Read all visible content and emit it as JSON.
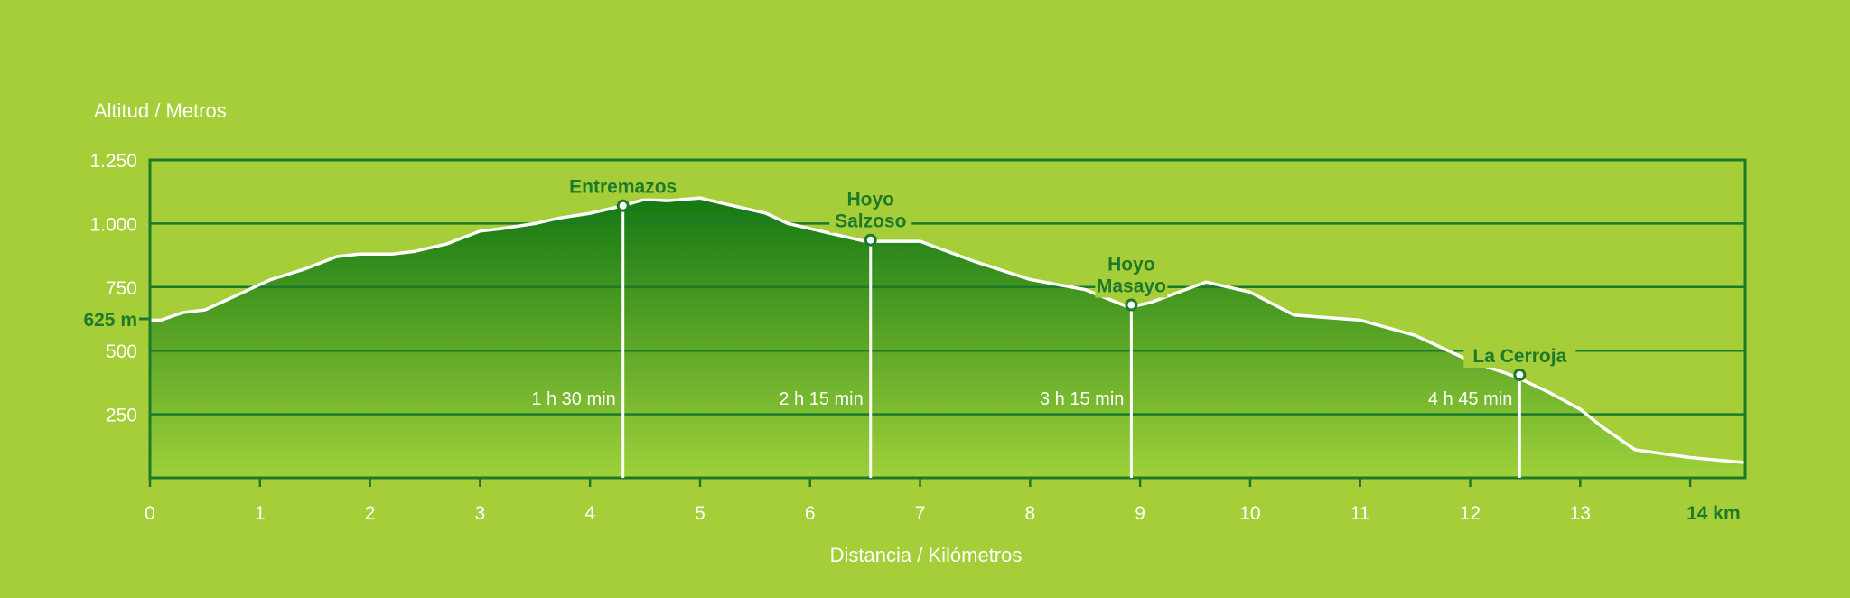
{
  "colors": {
    "background": "#a6ce39",
    "frame": "#1e7a2a",
    "area_top": "#137813",
    "area_bottom": "#9fd13a",
    "profile_line": "#ffffff",
    "white_text": "#ffffff",
    "green_text": "#1e7a2a"
  },
  "chart_data": {
    "type": "area",
    "ylabel": "Altitud / Metros",
    "xlabel": "Distancia / Kilómetros",
    "xlim": [
      0,
      14.5
    ],
    "ylim": [
      0,
      1250
    ],
    "xticks": [
      "0",
      "1",
      "2",
      "3",
      "4",
      "5",
      "6",
      "7",
      "8",
      "9",
      "10",
      "11",
      "12",
      "13",
      "14 km"
    ],
    "yticks": [
      "1.250",
      "1.000",
      "750",
      "500",
      "250"
    ],
    "ytick_values": [
      1250,
      1000,
      750,
      500,
      250
    ],
    "start_altitude_label": "625 m",
    "start_altitude_value": 625,
    "grid": true,
    "series": [
      {
        "x": [
          0,
          0.1,
          0.3,
          0.5,
          0.7,
          0.9,
          1.1,
          1.4,
          1.7,
          1.9,
          2.2,
          2.4,
          2.7,
          3.0,
          3.2,
          3.5,
          3.7,
          4.0,
          4.3,
          4.5,
          4.7,
          5.0,
          5.2,
          5.6,
          5.8,
          6.2,
          6.5,
          7.0,
          7.5,
          8.0,
          8.5,
          8.9,
          9.1,
          9.6,
          10.0,
          10.4,
          11.0,
          11.5,
          12.0,
          12.4,
          12.7,
          13.0,
          13.2,
          13.5,
          14.0,
          14.5
        ],
        "y": [
          620,
          620,
          650,
          660,
          700,
          740,
          780,
          820,
          870,
          880,
          880,
          890,
          920,
          970,
          980,
          1000,
          1020,
          1040,
          1070,
          1095,
          1090,
          1100,
          1080,
          1040,
          1000,
          960,
          930,
          930,
          850,
          780,
          740,
          670,
          690,
          770,
          730,
          640,
          620,
          560,
          460,
          400,
          340,
          270,
          200,
          110,
          80,
          60
        ]
      }
    ],
    "waypoints": [
      {
        "name_lines": [
          "Entremazos"
        ],
        "x": 4.3,
        "y": 1070,
        "time": "1 h 30 min"
      },
      {
        "name_lines": [
          "Hoyo",
          "Salzoso"
        ],
        "x": 6.55,
        "y": 935,
        "time": "2 h 15 min"
      },
      {
        "name_lines": [
          "Hoyo",
          "Masayo"
        ],
        "x": 8.92,
        "y": 680,
        "time": "3 h 15 min"
      },
      {
        "name_lines": [
          "La Cerroja"
        ],
        "x": 12.45,
        "y": 405,
        "time": "4 h 45 min"
      }
    ]
  }
}
